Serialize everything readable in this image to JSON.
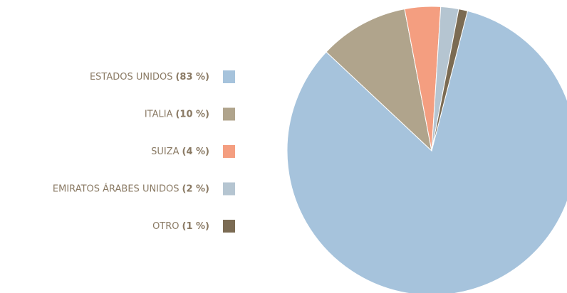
{
  "chart_data": {
    "type": "pie",
    "categories": [
      "ESTADOS UNIDOS",
      "ITALIA",
      "SUIZA",
      "EMIRATOS ÁRABES UNIDOS",
      "OTRO"
    ],
    "values": [
      83,
      10,
      4,
      2,
      1
    ],
    "value_labels": [
      "(83 %)",
      "(10 %)",
      "(4 %)",
      "(2 %)",
      "(1 %)"
    ],
    "colors": [
      "#a6c3dc",
      "#b0a48c",
      "#f49e80",
      "#b5c5d1",
      "#7b6b53"
    ]
  }
}
